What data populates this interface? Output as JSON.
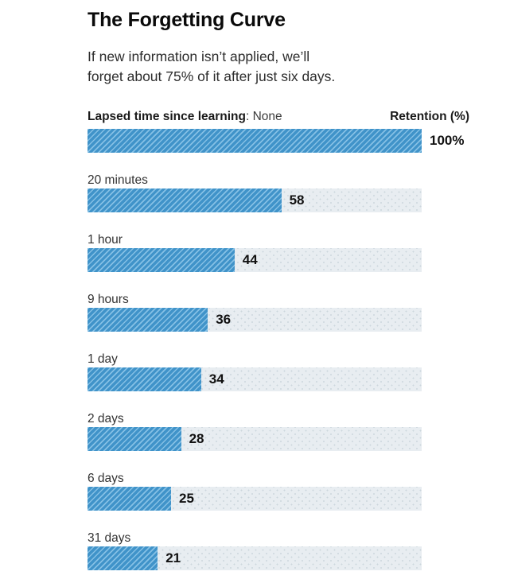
{
  "title": "The Forgetting Curve",
  "subtitle": {
    "lines": [
      "If new information isn’t applied, we’ll",
      "forget about 75% of it after just six days."
    ]
  },
  "header": {
    "left_bold": "Lapsed time since learning",
    "left_rest": ": None",
    "right": "Retention (%)"
  },
  "rows": [
    {
      "label": "",
      "value": 100,
      "display": "100%"
    },
    {
      "label": "20 minutes",
      "value": 58,
      "display": "58"
    },
    {
      "label": "1 hour",
      "value": 44,
      "display": "44"
    },
    {
      "label": "9 hours",
      "value": 36,
      "display": "36"
    },
    {
      "label": "1 day",
      "value": 34,
      "display": "34"
    },
    {
      "label": "2 days",
      "value": 28,
      "display": "28"
    },
    {
      "label": "6 days",
      "value": 25,
      "display": "25"
    },
    {
      "label": "31 days",
      "value": 21,
      "display": "21"
    }
  ],
  "colors": {
    "bar_blue": "#4093c9",
    "bar_stripe": "#85c0e5",
    "track": "#e8edf1",
    "track_dot": "#ccd6dd",
    "text": "#111111"
  },
  "chart_data": {
    "type": "bar",
    "orientation": "horizontal",
    "title": "The Forgetting Curve",
    "subtitle": "If new information isn’t applied, we’ll forget about 75% of it after just six days.",
    "categories": [
      "None",
      "20 minutes",
      "1 hour",
      "9 hours",
      "1 day",
      "2 days",
      "6 days",
      "31 days"
    ],
    "values": [
      100,
      58,
      44,
      36,
      34,
      28,
      25,
      21
    ],
    "xlabel": "Lapsed time since learning",
    "ylabel": "Retention (%)",
    "xlim": [
      0,
      100
    ],
    "grid": false,
    "legend": false,
    "value_labels": [
      "100%",
      "58",
      "44",
      "36",
      "34",
      "28",
      "25",
      "21"
    ]
  }
}
